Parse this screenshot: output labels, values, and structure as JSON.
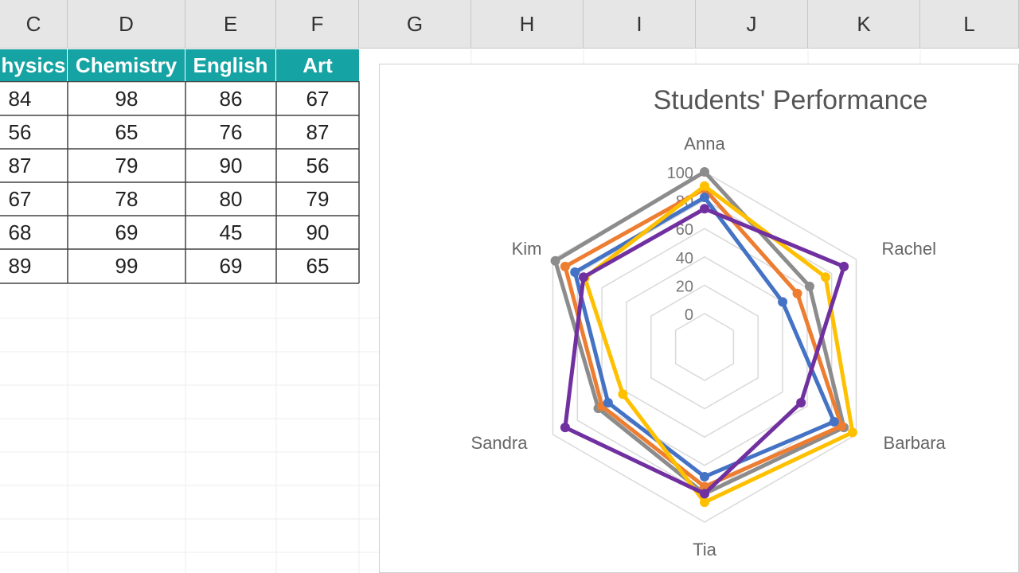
{
  "columns": [
    "C",
    "D",
    "E",
    "F",
    "G",
    "H",
    "I",
    "J",
    "K",
    "L"
  ],
  "table": {
    "headers": [
      "hysics",
      "Chemistry",
      "English",
      "Art"
    ],
    "rows": [
      [
        "84",
        "98",
        "86",
        "67"
      ],
      [
        "56",
        "65",
        "76",
        "87"
      ],
      [
        "87",
        "79",
        "90",
        "56"
      ],
      [
        "67",
        "78",
        "80",
        "79"
      ],
      [
        "68",
        "69",
        "45",
        "90"
      ],
      [
        "89",
        "99",
        "69",
        "65"
      ]
    ]
  },
  "colors": {
    "header_fill": "#16a3a3",
    "header_text": "#ffffff"
  },
  "chart_data": {
    "type": "radar",
    "title": "Students' Performance",
    "categories": [
      "Anna",
      "Rachel",
      "Barbara",
      "Tia",
      "Sandra",
      "Kim"
    ],
    "rlim": [
      0,
      100
    ],
    "r_ticks": [
      "0",
      "20",
      "40",
      "60",
      "80",
      "100"
    ],
    "series": [
      {
        "color": "#8c8c8c",
        "values": [
          100,
          62,
          90,
          80,
          63,
          98
        ]
      },
      {
        "color": "#ed7d31",
        "values": [
          88,
          52,
          88,
          75,
          60,
          90
        ]
      },
      {
        "color": "#4472c4",
        "values": [
          82,
          40,
          82,
          68,
          55,
          82
        ]
      },
      {
        "color": "#ffc000",
        "values": [
          90,
          75,
          97,
          86,
          43,
          74
        ]
      },
      {
        "color": "#7030a0",
        "values": [
          74,
          90,
          55,
          80,
          90,
          75
        ]
      }
    ]
  }
}
